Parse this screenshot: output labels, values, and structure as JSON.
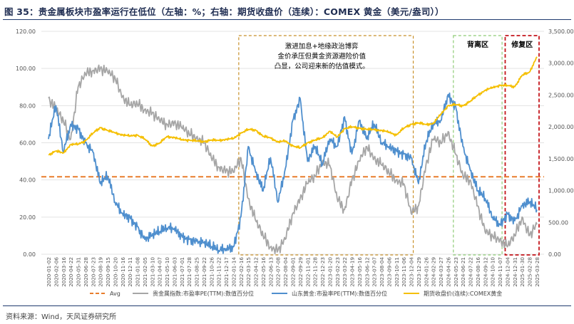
{
  "figure": {
    "title": "图 35：贵金属板块市盈率运行在低位（左轴：%；右轴：期货收盘价（连续）：COMEX 黄金（美元/盎司））",
    "source": "资料来源：Wind，天风证券研究所"
  },
  "chart_data": {
    "type": "line",
    "left_axis": {
      "min": 0,
      "max": 120,
      "ticks": [
        "0.00",
        "20.00",
        "40.00",
        "60.00",
        "80.00",
        "100.00",
        "120.00"
      ]
    },
    "right_axis": {
      "min": 0,
      "max": 3500,
      "ticks": [
        "0.00",
        "500.00",
        "1,000.00",
        "1,500.00",
        "2,000.00",
        "2,500.00",
        "3,000.00",
        "3,500.00"
      ]
    },
    "x_labels": [
      "2020-01-02",
      "2020-02-06",
      "2020-03-16",
      "2020-04-22",
      "2020-05-31",
      "2020-06-28",
      "2020-07-23",
      "2020-08-19",
      "2020-09-15",
      "2020-10-20",
      "2020-11-16",
      "2020-12-11",
      "2021-01-08",
      "2021-02-05",
      "2021-03-10",
      "2021-04-07",
      "2021-05-10",
      "2021-06-03",
      "2021-07-01",
      "2021-07-28",
      "2021-08-25",
      "2021-09-22",
      "2021-10-26",
      "2021-11-22",
      "2021-12-17",
      "2022-01-14",
      "2022-02-16",
      "2022-03-15",
      "2022-04-12",
      "2022-05-16",
      "2022-06-13",
      "2022-07-08",
      "2022-08-04",
      "2022-09-01",
      "2022-09-29",
      "2022-11-01",
      "2022-11-28",
      "2022-12-23",
      "2023-01-20",
      "2023-02-23",
      "2023-03-22",
      "2023-04-19",
      "2023-05-16",
      "2023-06-12",
      "2023-07-07",
      "2023-08-04",
      "2023-09-06",
      "2023-10-11",
      "2023-11-06",
      "2023-12-04",
      "2023-12-29",
      "2024-01-26",
      "2024-02-29",
      "2024-03-27",
      "2024-04-26",
      "2024-05-23",
      "2024-06-21",
      "2024-07-22",
      "2024-08-16",
      "2024-09-12",
      "2024-10-10",
      "2024-11-07",
      "2024-12-04",
      "2024-12-31",
      "2025-01-30",
      "2025-02-28",
      "2025-03-28"
    ],
    "avg": 41.7,
    "series": [
      {
        "name": "贵金属指数:市盈率PE(TTM):数值百分位",
        "color": "#a6a6a6",
        "axis": "left",
        "values": [
          84,
          78,
          72,
          62,
          90,
          97,
          99,
          100,
          98,
          95,
          85,
          80,
          81,
          78,
          76,
          72,
          70,
          71,
          68,
          65,
          63,
          60,
          52,
          47,
          45,
          44,
          52,
          30,
          18,
          10,
          4,
          2,
          8,
          22,
          30,
          38,
          42,
          50,
          48,
          30,
          24,
          40,
          50,
          58,
          52,
          48,
          44,
          40,
          38,
          22,
          26,
          48,
          62,
          60,
          66,
          54,
          42,
          40,
          26,
          12,
          10,
          8,
          4,
          10,
          20,
          10,
          16
        ]
      },
      {
        "name": "山东黄金:市盈率PE(TTM):数值百分位",
        "color": "#4f8fce",
        "axis": "left",
        "values": [
          62,
          80,
          55,
          70,
          68,
          60,
          55,
          38,
          42,
          28,
          22,
          20,
          15,
          8,
          10,
          12,
          14,
          14,
          10,
          8,
          7,
          6,
          4,
          2,
          3,
          4,
          20,
          58,
          44,
          34,
          52,
          28,
          46,
          72,
          84,
          50,
          58,
          48,
          62,
          58,
          74,
          54,
          72,
          62,
          70,
          60,
          58,
          56,
          54,
          52,
          38,
          60,
          70,
          72,
          86,
          80,
          58,
          45,
          34,
          30,
          20,
          16,
          22,
          18,
          26,
          28,
          24
        ]
      },
      {
        "name": "期货收盘价(连续):COMEX黄金",
        "color": "#f5bf00",
        "axis": "right",
        "values": [
          1560,
          1620,
          1590,
          1720,
          1730,
          1780,
          1900,
          1990,
          1940,
          1910,
          1870,
          1860,
          1870,
          1810,
          1700,
          1740,
          1850,
          1830,
          1800,
          1790,
          1780,
          1770,
          1790,
          1790,
          1800,
          1820,
          1900,
          1960,
          1950,
          1850,
          1830,
          1760,
          1780,
          1700,
          1670,
          1750,
          1790,
          1830,
          1930,
          1840,
          1970,
          2000,
          1980,
          1960,
          1960,
          1940,
          1920,
          1870,
          1980,
          2040,
          2060,
          2040,
          2050,
          2200,
          2330,
          2350,
          2330,
          2400,
          2500,
          2570,
          2620,
          2650,
          2650,
          2630,
          2810,
          2860,
          3100
        ]
      }
    ],
    "avg_label": "Avg",
    "annotation": "激进加息+地缘政治博弈\n金价承压但黄金资源避险价值\n凸显，公司迎来新的估值模式。",
    "zones": [
      {
        "label": "",
        "color": "#c8902a",
        "from_index": 26,
        "to_index": 49
      },
      {
        "label": "背离区",
        "color": "#8dcc75",
        "from_index": 55,
        "to_index": 61
      },
      {
        "label": "修复区",
        "color": "#c4161c",
        "from_index": 62,
        "to_index": 66
      }
    ]
  }
}
